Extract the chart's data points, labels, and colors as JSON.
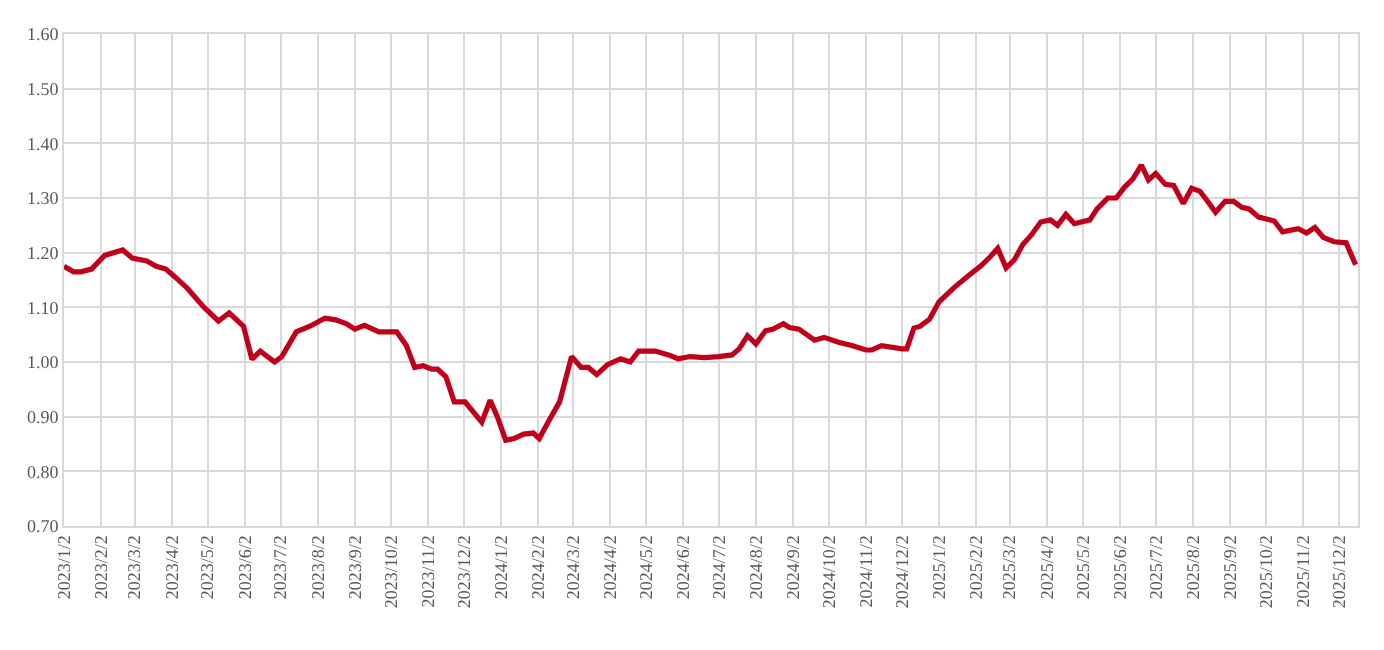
{
  "chart_data": {
    "type": "line",
    "grid": true,
    "marker": "none",
    "line_style": "solid",
    "x": [
      "2023-01-02",
      "2023-01-10",
      "2023-01-16",
      "2023-01-25",
      "2023-02-05",
      "2023-02-20",
      "2023-02-28",
      "2023-03-12",
      "2023-03-20",
      "2023-03-28",
      "2023-04-04",
      "2023-04-15",
      "2023-04-29",
      "2023-05-11",
      "2023-05-20",
      "2023-06-01",
      "2023-06-08",
      "2023-06-15",
      "2023-06-27",
      "2023-07-03",
      "2023-07-15",
      "2023-07-26",
      "2023-08-08",
      "2023-08-17",
      "2023-08-26",
      "2023-09-02",
      "2023-09-10",
      "2023-09-22",
      "2023-10-07",
      "2023-10-15",
      "2023-10-22",
      "2023-10-29",
      "2023-11-05",
      "2023-11-10",
      "2023-11-17",
      "2023-11-24",
      "2023-12-03",
      "2023-12-17",
      "2023-12-24",
      "2023-12-30",
      "2024-01-06",
      "2024-01-13",
      "2024-01-21",
      "2024-01-29",
      "2024-02-03",
      "2024-02-12",
      "2024-02-20",
      "2024-03-01",
      "2024-03-09",
      "2024-03-15",
      "2024-03-22",
      "2024-03-31",
      "2024-04-11",
      "2024-04-19",
      "2024-04-26",
      "2024-05-10",
      "2024-05-21",
      "2024-05-29",
      "2024-06-08",
      "2024-06-20",
      "2024-07-02",
      "2024-07-13",
      "2024-07-19",
      "2024-07-26",
      "2024-08-02",
      "2024-08-10",
      "2024-08-16",
      "2024-08-25",
      "2024-08-30",
      "2024-09-07",
      "2024-09-20",
      "2024-09-28",
      "2024-10-10",
      "2024-10-21",
      "2024-11-02",
      "2024-11-07",
      "2024-11-15",
      "2024-12-02",
      "2024-12-06",
      "2024-12-12",
      "2024-12-17",
      "2024-12-25",
      "2025-01-02",
      "2025-01-15",
      "2025-01-26",
      "2025-02-06",
      "2025-02-14",
      "2025-02-20",
      "2025-02-27",
      "2025-03-06",
      "2025-03-13",
      "2025-03-20",
      "2025-03-28",
      "2025-04-05",
      "2025-04-11",
      "2025-04-18",
      "2025-04-25",
      "2025-05-08",
      "2025-05-14",
      "2025-05-23",
      "2025-05-30",
      "2025-06-06",
      "2025-06-13",
      "2025-06-20",
      "2025-06-26",
      "2025-07-02",
      "2025-07-10",
      "2025-07-17",
      "2025-07-25",
      "2025-08-01",
      "2025-08-08",
      "2025-08-14",
      "2025-08-21",
      "2025-08-29",
      "2025-09-05",
      "2025-09-12",
      "2025-09-18",
      "2025-09-26",
      "2025-10-09",
      "2025-10-16",
      "2025-10-29",
      "2025-11-05",
      "2025-11-12",
      "2025-11-19",
      "2025-11-28",
      "2025-12-08",
      "2025-12-16"
    ],
    "series": [
      {
        "color": "#c0001a",
        "values": [
          1.175,
          1.165,
          1.165,
          1.17,
          1.195,
          1.205,
          1.19,
          1.185,
          1.175,
          1.17,
          1.157,
          1.135,
          1.1,
          1.075,
          1.09,
          1.065,
          1.005,
          1.02,
          1.0,
          1.01,
          1.055,
          1.065,
          1.08,
          1.077,
          1.07,
          1.06,
          1.067,
          1.055,
          1.055,
          1.03,
          0.99,
          0.993,
          0.987,
          0.987,
          0.973,
          0.927,
          0.927,
          0.89,
          0.93,
          0.9,
          0.857,
          0.86,
          0.868,
          0.87,
          0.86,
          0.896,
          0.927,
          1.01,
          0.99,
          0.99,
          0.977,
          0.995,
          1.006,
          1.0,
          1.02,
          1.02,
          1.013,
          1.006,
          1.01,
          1.008,
          1.01,
          1.013,
          1.024,
          1.048,
          1.033,
          1.057,
          1.06,
          1.07,
          1.063,
          1.06,
          1.04,
          1.045,
          1.036,
          1.03,
          1.022,
          1.022,
          1.03,
          1.024,
          1.024,
          1.062,
          1.065,
          1.078,
          1.11,
          1.137,
          1.157,
          1.176,
          1.193,
          1.208,
          1.172,
          1.187,
          1.215,
          1.232,
          1.256,
          1.26,
          1.25,
          1.27,
          1.253,
          1.26,
          1.28,
          1.3,
          1.3,
          1.32,
          1.335,
          1.36,
          1.333,
          1.345,
          1.325,
          1.323,
          1.29,
          1.318,
          1.312,
          1.295,
          1.274,
          1.294,
          1.294,
          1.283,
          1.28,
          1.265,
          1.258,
          1.238,
          1.244,
          1.236,
          1.246,
          1.228,
          1.22,
          1.218,
          1.178
        ]
      }
    ],
    "xlim": [
      "2023-01-02",
      "2025-12-18"
    ],
    "xticks": [
      {
        "value": "2023-01-02",
        "label": "2023/1/2"
      },
      {
        "value": "2023-02-02",
        "label": "2023/2/2"
      },
      {
        "value": "2023-03-02",
        "label": "2023/3/2"
      },
      {
        "value": "2023-04-02",
        "label": "2023/4/2"
      },
      {
        "value": "2023-05-02",
        "label": "2023/5/2"
      },
      {
        "value": "2023-06-02",
        "label": "2023/6/2"
      },
      {
        "value": "2023-07-02",
        "label": "2023/7/2"
      },
      {
        "value": "2023-08-02",
        "label": "2023/8/2"
      },
      {
        "value": "2023-09-02",
        "label": "2023/9/2"
      },
      {
        "value": "2023-10-02",
        "label": "2023/10/2"
      },
      {
        "value": "2023-11-02",
        "label": "2023/11/2"
      },
      {
        "value": "2023-12-02",
        "label": "2023/12/2"
      },
      {
        "value": "2024-01-02",
        "label": "2024/1/2"
      },
      {
        "value": "2024-02-02",
        "label": "2024/2/2"
      },
      {
        "value": "2024-03-02",
        "label": "2024/3/2"
      },
      {
        "value": "2024-04-02",
        "label": "2024/4/2"
      },
      {
        "value": "2024-05-02",
        "label": "2024/5/2"
      },
      {
        "value": "2024-06-02",
        "label": "2024/6/2"
      },
      {
        "value": "2024-07-02",
        "label": "2024/7/2"
      },
      {
        "value": "2024-08-02",
        "label": "2024/8/2"
      },
      {
        "value": "2024-09-02",
        "label": "2024/9/2"
      },
      {
        "value": "2024-10-02",
        "label": "2024/10/2"
      },
      {
        "value": "2024-11-02",
        "label": "2024/11/2"
      },
      {
        "value": "2024-12-02",
        "label": "2024/12/2"
      },
      {
        "value": "2025-01-02",
        "label": "2025/1/2"
      },
      {
        "value": "2025-02-02",
        "label": "2025/2/2"
      },
      {
        "value": "2025-03-02",
        "label": "2025/3/2"
      },
      {
        "value": "2025-04-02",
        "label": "2025/4/2"
      },
      {
        "value": "2025-05-02",
        "label": "2025/5/2"
      },
      {
        "value": "2025-06-02",
        "label": "2025/6/2"
      },
      {
        "value": "2025-07-02",
        "label": "2025/7/2"
      },
      {
        "value": "2025-08-02",
        "label": "2025/8/2"
      },
      {
        "value": "2025-09-02",
        "label": "2025/9/2"
      },
      {
        "value": "2025-10-02",
        "label": "2025/10/2"
      },
      {
        "value": "2025-11-02",
        "label": "2025/11/2"
      },
      {
        "value": "2025-12-02",
        "label": "2025/12/2"
      }
    ],
    "ylim": [
      0.7,
      1.6
    ],
    "yticks": [
      {
        "value": 0.7,
        "label": "0.70"
      },
      {
        "value": 0.8,
        "label": "0.80"
      },
      {
        "value": 0.9,
        "label": "0.90"
      },
      {
        "value": 1.0,
        "label": "1.00"
      },
      {
        "value": 1.1,
        "label": "1.10"
      },
      {
        "value": 1.2,
        "label": "1.20"
      },
      {
        "value": 1.3,
        "label": "1.30"
      },
      {
        "value": 1.4,
        "label": "1.40"
      },
      {
        "value": 1.5,
        "label": "1.50"
      },
      {
        "value": 1.6,
        "label": "1.60"
      }
    ]
  }
}
